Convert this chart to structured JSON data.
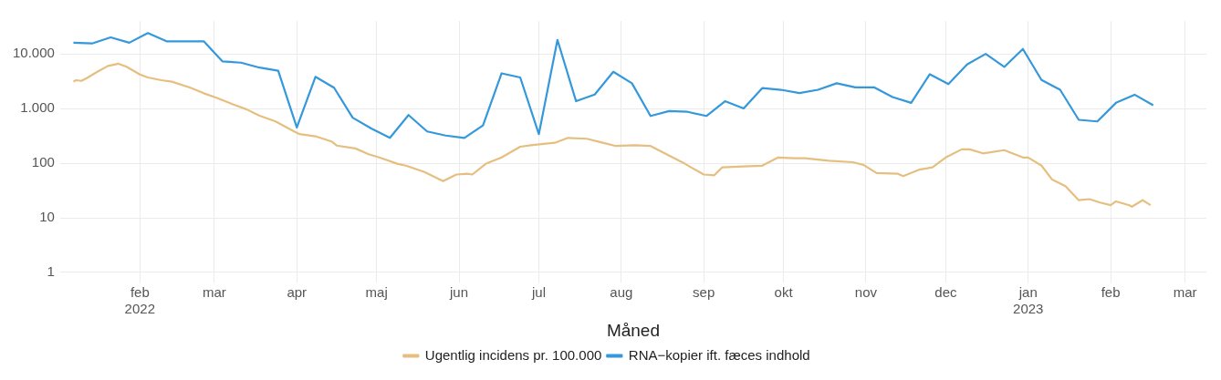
{
  "chart_data": {
    "type": "line",
    "xlabel": "Måned",
    "log": "y",
    "grid": true,
    "legend": "bottom",
    "marker": "none",
    "line_style": "solid",
    "xlim": [
      "2022-01-02",
      "2023-03-09"
    ],
    "xticks": [
      {
        "value": "2022-02-01",
        "label": "feb\n2022"
      },
      {
        "value": "2022-03-01",
        "label": "mar"
      },
      {
        "value": "2022-04-01",
        "label": "apr"
      },
      {
        "value": "2022-05-01",
        "label": "maj"
      },
      {
        "value": "2022-06-01",
        "label": "jun"
      },
      {
        "value": "2022-07-01",
        "label": "jul"
      },
      {
        "value": "2022-08-01",
        "label": "aug"
      },
      {
        "value": "2022-09-01",
        "label": "sep"
      },
      {
        "value": "2022-10-01",
        "label": "okt"
      },
      {
        "value": "2022-11-01",
        "label": "nov"
      },
      {
        "value": "2022-12-01",
        "label": "dec"
      },
      {
        "value": "2023-01-01",
        "label": "jan\n2023"
      },
      {
        "value": "2023-02-01",
        "label": "feb"
      },
      {
        "value": "2023-03-01",
        "label": "mar"
      }
    ],
    "ylim": [
      0.65,
      40000
    ],
    "yticks": [
      1,
      10,
      100,
      {
        "value": 1000,
        "label": "1.000"
      },
      {
        "value": 10000,
        "label": "10.000"
      }
    ],
    "series": [
      {
        "name": "Ugentlig incidens pr. 100.000",
        "color": "#e6bf80",
        "x": [
          "2022-01-07",
          "2022-01-08",
          "2022-01-10",
          "2022-01-12",
          "2022-01-16",
          "2022-01-20",
          "2022-01-24",
          "2022-01-27",
          "2022-02-01",
          "2022-02-04",
          "2022-02-09",
          "2022-02-13",
          "2022-02-20",
          "2022-02-25",
          "2022-03-02",
          "2022-03-08",
          "2022-03-13",
          "2022-03-18",
          "2022-03-24",
          "2022-03-31",
          "2022-04-02",
          "2022-04-08",
          "2022-04-14",
          "2022-04-16",
          "2022-04-23",
          "2022-04-28",
          "2022-05-02",
          "2022-05-09",
          "2022-05-12",
          "2022-05-19",
          "2022-05-26",
          "2022-05-31",
          "2022-06-04",
          "2022-06-06",
          "2022-06-11",
          "2022-06-17",
          "2022-06-24",
          "2022-06-28",
          "2022-07-07",
          "2022-07-12",
          "2022-07-19",
          "2022-07-24",
          "2022-07-30",
          "2022-08-06",
          "2022-08-12",
          "2022-08-18",
          "2022-08-25",
          "2022-09-01",
          "2022-09-05",
          "2022-09-08",
          "2022-09-16",
          "2022-09-23",
          "2022-09-29",
          "2022-10-05",
          "2022-10-09",
          "2022-10-18",
          "2022-10-27",
          "2022-10-31",
          "2022-11-05",
          "2022-11-13",
          "2022-11-15",
          "2022-11-21",
          "2022-11-26",
          "2022-12-01",
          "2022-12-07",
          "2022-12-10",
          "2022-12-15",
          "2022-12-23",
          "2022-12-30",
          "2023-01-01",
          "2023-01-06",
          "2023-01-10",
          "2023-01-15",
          "2023-01-20",
          "2023-01-24",
          "2023-01-28",
          "2023-02-01",
          "2023-02-03",
          "2023-02-08",
          "2023-02-09",
          "2023-02-13",
          "2023-02-16"
        ],
        "values": [
          3100,
          3300,
          3200,
          3600,
          4700,
          6000,
          6600,
          5800,
          4200,
          3700,
          3300,
          3100,
          2400,
          1900,
          1560,
          1190,
          970,
          740,
          580,
          380,
          340,
          310,
          250,
          210,
          186,
          146,
          127,
          97,
          90,
          69,
          47,
          62,
          64,
          62,
          97,
          127,
          200,
          213,
          236,
          290,
          280,
          244,
          206,
          213,
          206,
          146,
          97,
          62,
          60,
          84,
          87,
          90,
          127,
          123,
          123,
          111,
          104,
          93,
          66,
          64,
          58,
          76,
          84,
          127,
          179,
          179,
          151,
          173,
          127,
          127,
          90,
          50,
          38,
          21,
          22,
          19,
          17,
          20,
          17,
          16,
          21,
          17
        ]
      },
      {
        "name": "RNA−kopier ift. fæces indhold",
        "color": "#3498db",
        "x": [
          "2022-01-07",
          "2022-01-14",
          "2022-01-21",
          "2022-01-28",
          "2022-02-04",
          "2022-02-11",
          "2022-02-18",
          "2022-02-25",
          "2022-03-04",
          "2022-03-11",
          "2022-03-18",
          "2022-03-25",
          "2022-04-01",
          "2022-04-08",
          "2022-04-15",
          "2022-04-22",
          "2022-04-29",
          "2022-05-06",
          "2022-05-13",
          "2022-05-20",
          "2022-05-27",
          "2022-06-03",
          "2022-06-10",
          "2022-06-17",
          "2022-06-24",
          "2022-07-01",
          "2022-07-08",
          "2022-07-15",
          "2022-07-22",
          "2022-07-29",
          "2022-08-05",
          "2022-08-12",
          "2022-08-19",
          "2022-08-26",
          "2022-09-02",
          "2022-09-09",
          "2022-09-16",
          "2022-09-23",
          "2022-09-30",
          "2022-10-07",
          "2022-10-14",
          "2022-10-21",
          "2022-10-28",
          "2022-11-04",
          "2022-11-11",
          "2022-11-18",
          "2022-11-25",
          "2022-12-02",
          "2022-12-09",
          "2022-12-16",
          "2022-12-23",
          "2022-12-30",
          "2023-01-06",
          "2023-01-13",
          "2023-01-20",
          "2023-01-27",
          "2023-02-03",
          "2023-02-10",
          "2023-02-17"
        ],
        "values": [
          16000,
          15500,
          20000,
          16000,
          24000,
          17000,
          17000,
          17000,
          7300,
          6900,
          5600,
          4900,
          450,
          3800,
          2400,
          680,
          430,
          290,
          760,
          380,
          320,
          290,
          490,
          4400,
          3700,
          340,
          18000,
          1360,
          1800,
          4700,
          2900,
          730,
          900,
          870,
          730,
          1360,
          1000,
          2360,
          2200,
          1920,
          2200,
          2900,
          2440,
          2440,
          1620,
          1270,
          4240,
          2800,
          6400,
          10000,
          5770,
          12300,
          3330,
          2200,
          620,
          580,
          1270,
          1790,
          1150
        ]
      }
    ]
  }
}
